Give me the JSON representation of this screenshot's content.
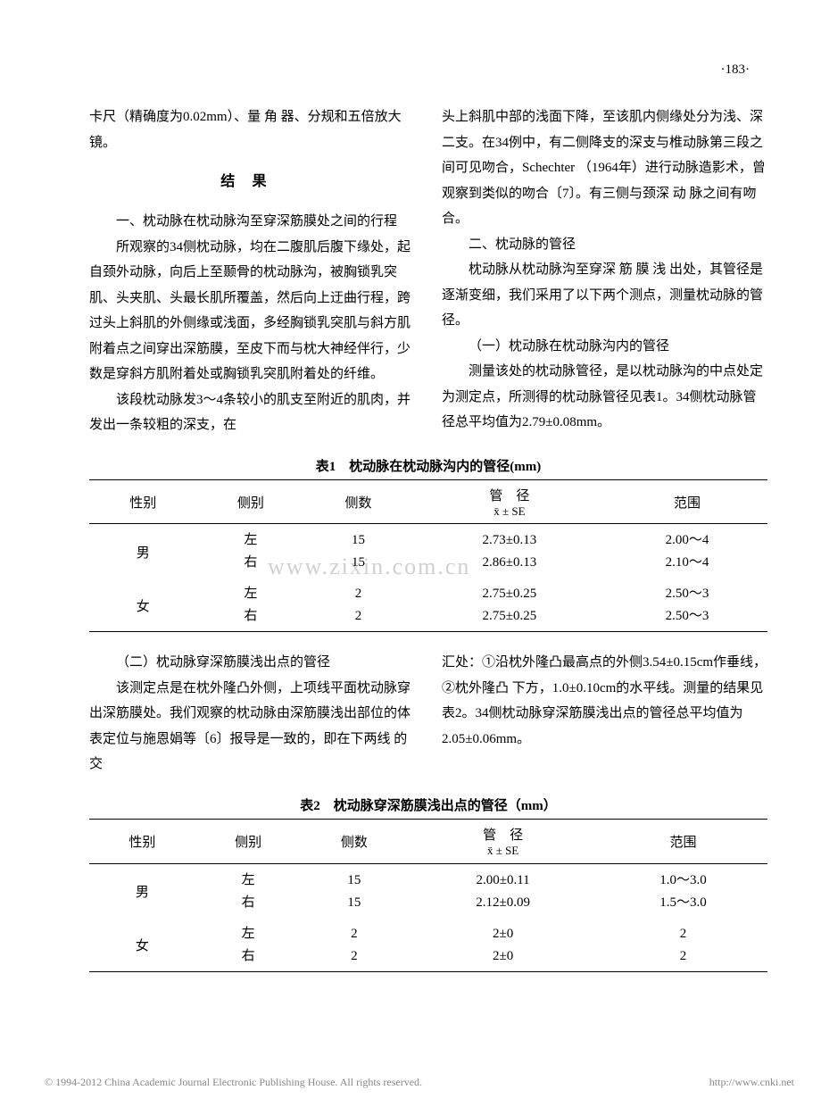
{
  "page_number": "·183·",
  "column_left": {
    "p1": "卡尺（精确度为0.02mm）、量 角 器、分规和五倍放大镜。",
    "heading": "结果",
    "p2": "一、枕动脉在枕动脉沟至穿深筋膜处之间的行程",
    "p3": "所观察的34侧枕动脉，均在二腹肌后腹下缘处，起自颈外动脉，向后上至颞骨的枕动脉沟，被胸锁乳突肌、头夹肌、头最长肌所覆盖，然后向上迂曲行程，跨过头上斜肌的外侧缘或浅面，多经胸锁乳突肌与斜方肌附着点之间穿出深筋膜，至皮下而与枕大神经伴行，少数是穿斜方肌附着处或胸锁乳突肌附着处的纤维。",
    "p4": "该段枕动脉发3～4条较小的肌支至附近的肌肉，并发出一条较粗的深支，在"
  },
  "column_right": {
    "p1": "头上斜肌中部的浅面下降，至该肌内侧缘处分为浅、深二支。在34例中，有二侧降支的深支与椎动脉第三段之间可见吻合，Schechter （1964年）进行动脉造影术，曾观察到类似的吻合〔7〕。有三侧与颈深 动 脉之间有吻合。",
    "p2": "二、枕动脉的管径",
    "p3": "枕动脉从枕动脉沟至穿深 筋 膜 浅 出处，其管径是逐渐变细，我们采用了以下两个测点，测量枕动脉的管径。",
    "p4": "（一）枕动脉在枕动脉沟内的管径",
    "p5": "测量该处的枕动脉管径，是以枕动脉沟的中点处定为测定点，所测得的枕动脉管径见表1。34侧枕动脉管径总平均值为2.79±0.08mm。"
  },
  "table1": {
    "caption": "表1　枕动脉在枕动脉沟内的管径(mm)",
    "headers": {
      "col1": "性别",
      "col2": "侧别",
      "col3": "侧数",
      "col4_top": "管　径",
      "col4_sub": "x̄ ± SE",
      "col5": "范围"
    },
    "rows": [
      {
        "sex": "男",
        "side": "左",
        "n": "15",
        "diameter": "2.73±0.13",
        "range": "2.00～4"
      },
      {
        "sex": "",
        "side": "右",
        "n": "15",
        "diameter": "2.86±0.13",
        "range": "2.10～4"
      },
      {
        "sex": "女",
        "side": "左",
        "n": "2",
        "diameter": "2.75±0.25",
        "range": "2.50～3"
      },
      {
        "sex": "",
        "side": "右",
        "n": "2",
        "diameter": "2.75±0.25",
        "range": "2.50～3"
      }
    ]
  },
  "column2_left": {
    "p1": "（二）枕动脉穿深筋膜浅出点的管径",
    "p2": "该测定点是在枕外隆凸外侧，上项线平面枕动脉穿出深筋膜处。我们观察的枕动脉由深筋膜浅出部位的体表定位与施恩娟等〔6〕报导是一致的，即在下两线 的 交"
  },
  "column2_right": {
    "p1": "汇处：①沿枕外隆凸最高点的外侧3.54±0.15cm作垂线，②枕外隆凸 下方，1.0±0.10cm的水平线。测量的结果见表2。34侧枕动脉穿深筋膜浅出点的管径总平均值为2.05±0.06mm。"
  },
  "table2": {
    "caption": "表2　枕动脉穿深筋膜浅出点的管径（mm）",
    "headers": {
      "col1": "性别",
      "col2": "侧别",
      "col3": "侧数",
      "col4_top": "管　径",
      "col4_sub": "x̄ ± SE",
      "col5": "范围"
    },
    "rows": [
      {
        "sex": "男",
        "side": "左",
        "n": "15",
        "diameter": "2.00±0.11",
        "range": "1.0～3.0"
      },
      {
        "sex": "",
        "side": "右",
        "n": "15",
        "diameter": "2.12±0.09",
        "range": "1.5～3.0"
      },
      {
        "sex": "女",
        "side": "左",
        "n": "2",
        "diameter": "2±0",
        "range": "2"
      },
      {
        "sex": "",
        "side": "右",
        "n": "2",
        "diameter": "2±0",
        "range": "2"
      }
    ]
  },
  "watermark": "www.zixin.com.cn",
  "footer": {
    "left": "© 1994-2012 China Academic Journal Electronic Publishing House. All rights reserved.",
    "right": "http://www.cnki.net"
  }
}
